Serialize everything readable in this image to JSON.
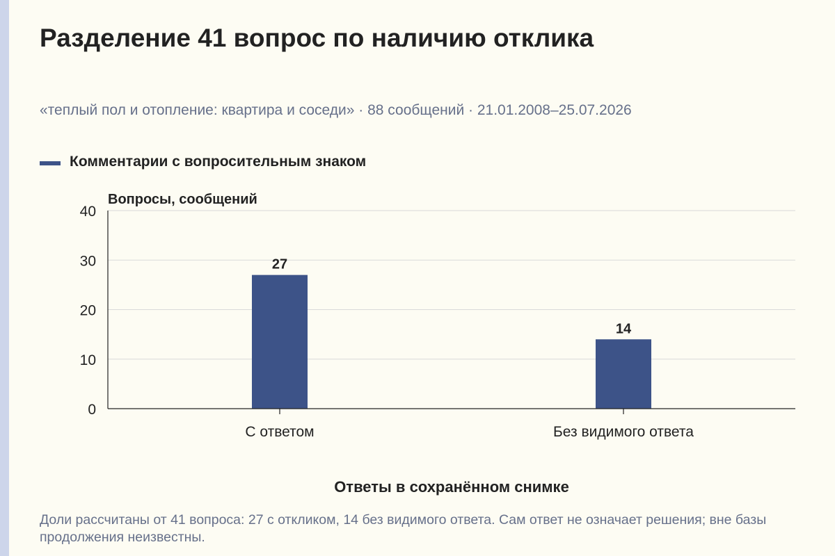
{
  "title": "Разделение 41 вопрос по наличию отклика",
  "subtitle": "«теплый пол и отопление: квартира и соседи» · 88 сообщений · 21.01.2008–25.07.2026",
  "footnote": "Доли рассчитаны от 41 вопроса: 27 с откликом, 14 без видимого ответа. Сам ответ не означает решения; вне базы продолжения неизвестны.",
  "colors": {
    "bar": "#3d5388",
    "background": "#fdfcf3",
    "text": "#222222",
    "muted_text": "#66708a",
    "grid": "#d9d9d9",
    "axis": "#222222"
  },
  "chart_data": {
    "type": "bar",
    "categories": [
      "С ответом",
      "Без видимого ответа"
    ],
    "series": [
      {
        "name": "Комментарии с вопросительным знаком",
        "values": [
          27,
          14
        ]
      }
    ],
    "data_labels": [
      "27",
      "14"
    ],
    "xlabel": "Ответы в сохранённом снимке",
    "ylabel": "Вопросы, сообщений",
    "ylim": [
      0,
      40
    ],
    "yticks": [
      0,
      10,
      20,
      30,
      40
    ],
    "grid": true,
    "legend_position": "top-left"
  }
}
